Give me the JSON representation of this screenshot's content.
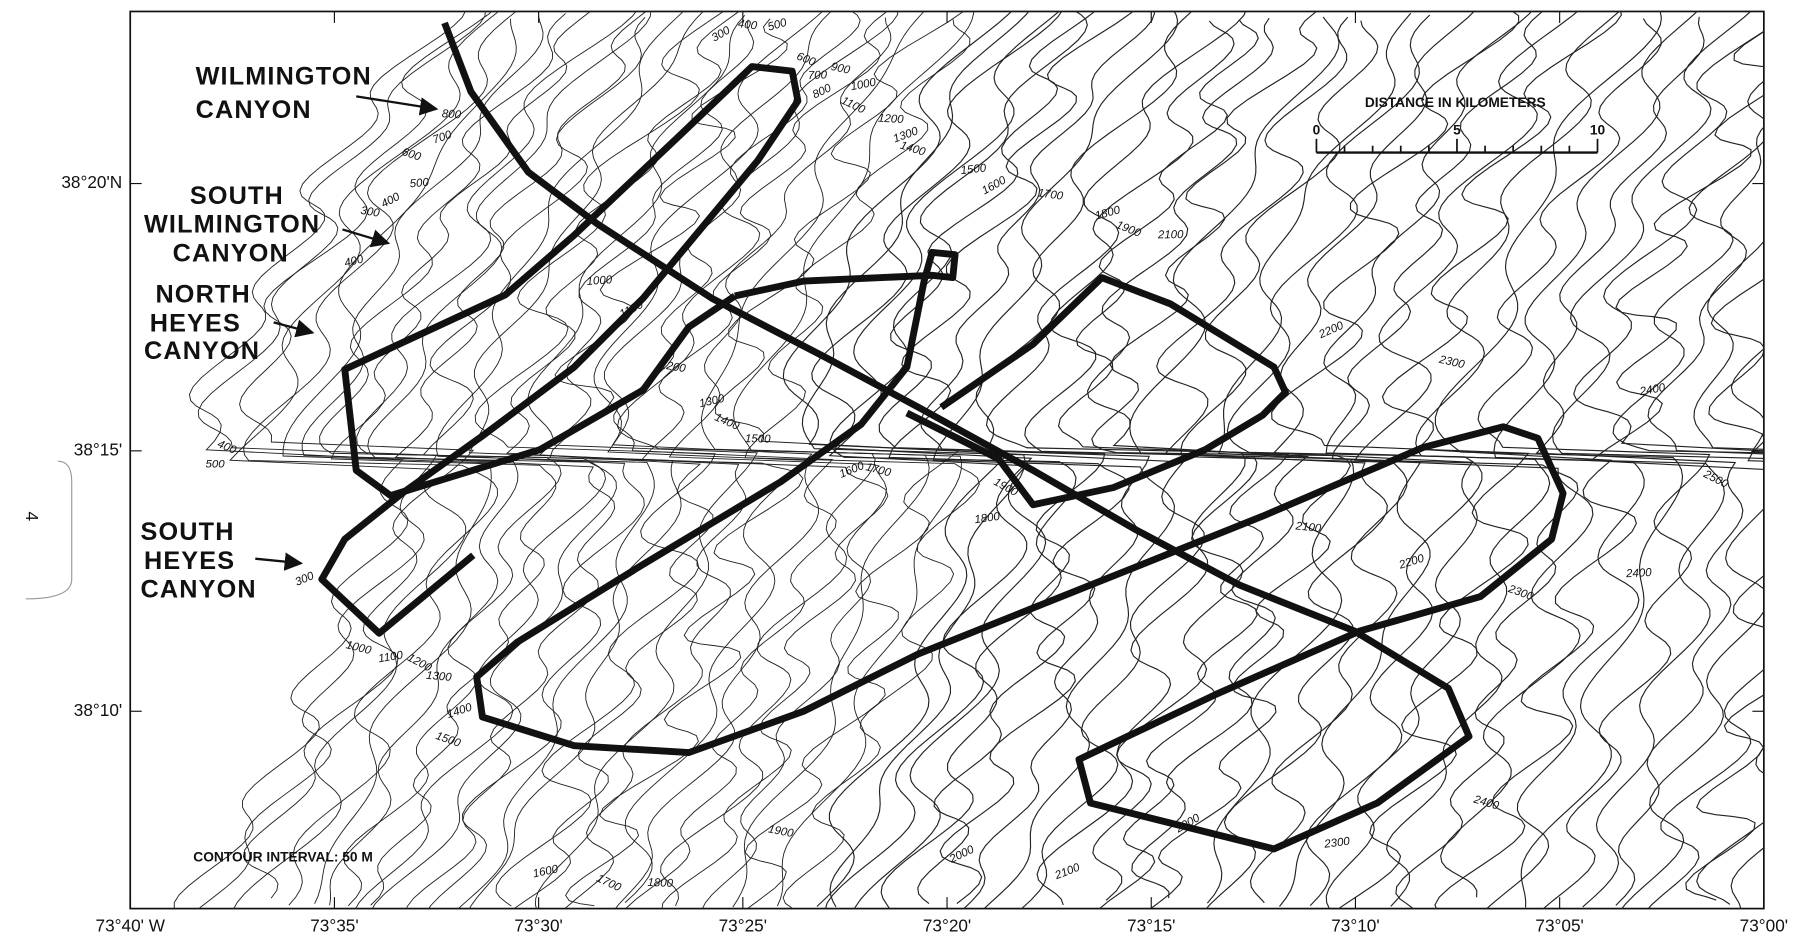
{
  "canyons": [
    {
      "lines": [
        "WILMINGTON",
        "CANYON"
      ]
    },
    {
      "lines": [
        "SOUTH",
        "WILMINGTON",
        "CANYON"
      ]
    },
    {
      "lines": [
        "NORTH",
        "HEYES",
        "CANYON"
      ]
    },
    {
      "lines": [
        "SOUTH",
        "HEYES",
        "CANYON"
      ]
    }
  ],
  "scale": {
    "title": "DISTANCE IN KILOMETERS",
    "ticks": [
      "0",
      "5",
      "10"
    ]
  },
  "latitudes": [
    "38°20'N",
    "38°15'",
    "38°10'"
  ],
  "longitudes": [
    "73°40' W",
    "73°35'",
    "73°30'",
    "73°25'",
    "73°20'",
    "73°15'",
    "73°10'",
    "73°05'",
    "73°00'"
  ],
  "note": "CONTOUR INTERVAL: 50 M",
  "page_number": "4",
  "contour_labels": [
    "300",
    "400",
    "500",
    "600",
    "700",
    "800",
    "900",
    "1000",
    "1100",
    "1200",
    "1300",
    "1400",
    "1500",
    "1600",
    "1700",
    "1800",
    "1900",
    "2100",
    "2200",
    "2300",
    "2400",
    "2500",
    "800",
    "700",
    "600",
    "500",
    "400",
    "300",
    "400",
    "400",
    "500",
    "300",
    "1000",
    "1100",
    "1200",
    "1300",
    "1400",
    "1500",
    "1000",
    "1100",
    "1200",
    "1300",
    "1400",
    "1500",
    "1600",
    "1700",
    "1800",
    "1900",
    "2100",
    "2200",
    "2300",
    "2400",
    "2000",
    "1900",
    "1600",
    "1700",
    "1800",
    "2100",
    "2400",
    "2300",
    "2000"
  ]
}
